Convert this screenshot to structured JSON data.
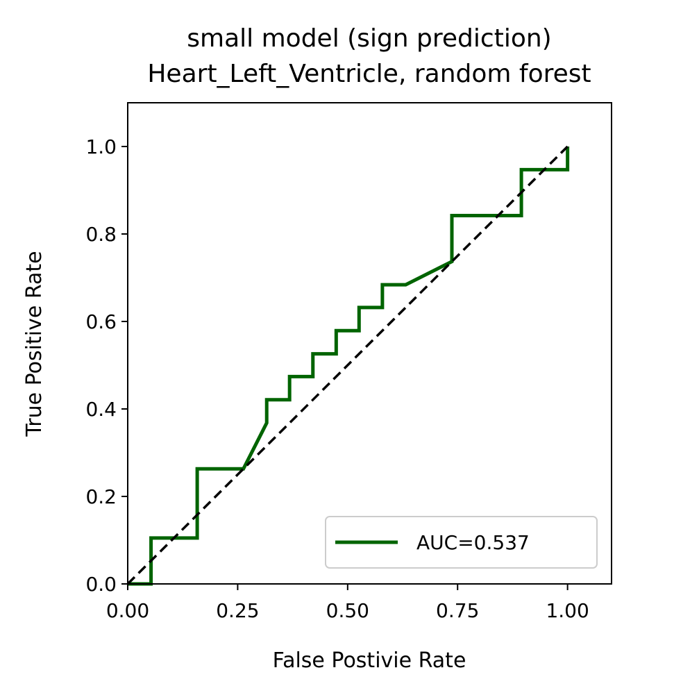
{
  "chart_data": {
    "type": "line",
    "title": "small model (sign prediction)",
    "subtitle": "Heart_Left_Ventricle, random forest",
    "xlabel": "False Postivie Rate",
    "ylabel": "True Positive Rate",
    "xlim": [
      0.0,
      1.1
    ],
    "ylim": [
      0.0,
      1.1
    ],
    "xticks": [
      0.0,
      0.25,
      0.5,
      0.75,
      1.0
    ],
    "xtick_labels": [
      "0.00",
      "0.25",
      "0.50",
      "0.75",
      "1.00"
    ],
    "yticks": [
      0.0,
      0.2,
      0.4,
      0.6,
      0.8,
      1.0
    ],
    "ytick_labels": [
      "0.0",
      "0.2",
      "0.4",
      "0.6",
      "0.8",
      "1.0"
    ],
    "grid": false,
    "legend_position": "lower-right",
    "series": [
      {
        "name": "AUC=0.537",
        "color": "#006400",
        "style": "solid",
        "x": [
          0.0,
          0.053,
          0.053,
          0.158,
          0.158,
          0.263,
          0.316,
          0.316,
          0.368,
          0.368,
          0.421,
          0.421,
          0.474,
          0.474,
          0.526,
          0.526,
          0.579,
          0.579,
          0.632,
          0.737,
          0.737,
          0.895,
          0.895,
          1.0,
          1.0
        ],
        "y": [
          0.0,
          0.0,
          0.105,
          0.105,
          0.263,
          0.263,
          0.368,
          0.421,
          0.421,
          0.474,
          0.474,
          0.526,
          0.526,
          0.579,
          0.579,
          0.632,
          0.632,
          0.684,
          0.684,
          0.737,
          0.842,
          0.842,
          0.947,
          0.947,
          1.0
        ]
      },
      {
        "name": "",
        "color": "#000000",
        "style": "dashed",
        "x": [
          0.0,
          1.0
        ],
        "y": [
          0.0,
          1.0
        ]
      }
    ]
  }
}
